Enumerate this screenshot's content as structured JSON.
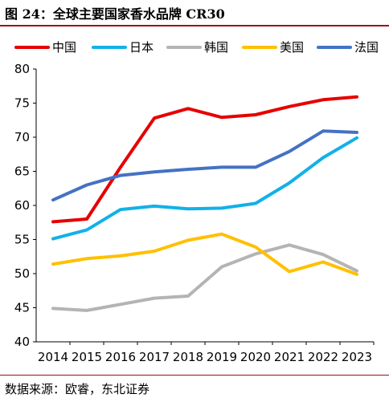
{
  "header": {
    "title": "图 24：全球主要国家香水品牌 CR30"
  },
  "footer": {
    "source": "数据来源：欧睿，东北证券"
  },
  "chart_data": {
    "type": "line",
    "title": "图 24：全球主要国家香水品牌 CR30",
    "xlabel": "",
    "ylabel": "",
    "x": [
      "2014",
      "2015",
      "2016",
      "2017",
      "2018",
      "2019",
      "2020",
      "2021",
      "2022",
      "2023"
    ],
    "ylim": [
      40,
      80
    ],
    "yticks": [
      40,
      45,
      50,
      55,
      60,
      65,
      70,
      75,
      80
    ],
    "grid": false,
    "legend_position": "top",
    "series": [
      {
        "name": "中国",
        "color": "#e60000",
        "values": [
          57.6,
          58.0,
          65.6,
          72.8,
          74.2,
          72.9,
          73.3,
          74.5,
          75.5,
          75.9
        ]
      },
      {
        "name": "日本",
        "color": "#12b1e8",
        "values": [
          55.1,
          56.4,
          59.4,
          59.9,
          59.5,
          59.6,
          60.3,
          63.3,
          67.0,
          69.9
        ]
      },
      {
        "name": "韩国",
        "color": "#b4b4b4",
        "values": [
          44.9,
          44.6,
          45.5,
          46.4,
          46.7,
          51.0,
          52.9,
          54.2,
          52.8,
          50.4
        ]
      },
      {
        "name": "美国",
        "color": "#ffc000",
        "values": [
          51.4,
          52.2,
          52.6,
          53.3,
          54.9,
          55.8,
          53.9,
          50.3,
          51.7,
          49.9
        ]
      },
      {
        "name": "法国",
        "color": "#4472c4",
        "values": [
          60.8,
          63.0,
          64.4,
          64.9,
          65.3,
          65.6,
          65.6,
          67.9,
          70.9,
          70.7
        ]
      }
    ]
  }
}
